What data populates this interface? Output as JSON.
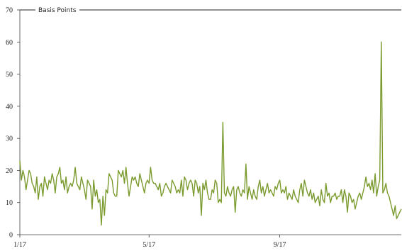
{
  "chart_data": {
    "type": "line",
    "title": "",
    "xlabel": "",
    "ylabel": "",
    "ylim": [
      0,
      70
    ],
    "y_ticks": [
      0,
      10,
      20,
      30,
      40,
      50,
      60,
      70
    ],
    "x_tick_labels": [
      "1/17",
      "5/17",
      "9/17"
    ],
    "grid": false,
    "legend_position": "top",
    "series": [
      {
        "name": "Basis Points",
        "color": "#7a9a2e",
        "values": [
          23,
          17,
          20,
          18,
          14,
          17,
          20,
          19,
          16,
          15,
          13,
          18,
          11,
          15,
          16,
          12,
          18,
          16,
          14,
          17,
          16,
          19,
          17,
          13,
          18,
          19,
          21,
          16,
          17,
          14,
          18,
          13,
          15,
          16,
          15,
          17,
          21,
          16,
          15,
          14,
          18,
          16,
          14,
          11,
          17,
          16,
          15,
          8,
          17,
          12,
          14,
          10,
          11,
          3,
          12,
          6,
          14,
          13,
          19,
          18,
          17,
          13,
          12,
          12,
          20,
          19,
          18,
          20,
          16,
          21,
          16,
          12,
          15,
          18,
          17,
          18,
          16,
          15,
          19,
          17,
          15,
          13,
          16,
          17,
          16,
          21,
          17,
          16,
          16,
          15,
          14,
          16,
          12,
          13,
          15,
          16,
          15,
          14,
          13,
          17,
          16,
          15,
          13,
          14,
          13,
          17,
          12,
          18,
          17,
          14,
          16,
          17,
          16,
          12,
          17,
          16,
          13,
          15,
          6,
          16,
          14,
          17,
          13,
          11,
          11,
          14,
          13,
          17,
          16,
          10,
          11,
          10,
          35,
          13,
          12,
          15,
          13,
          12,
          14,
          15,
          7,
          14,
          15,
          13,
          12,
          14,
          13,
          22,
          11,
          15,
          13,
          11,
          14,
          12,
          11,
          15,
          17,
          13,
          15,
          12,
          14,
          16,
          13,
          14,
          13,
          12,
          15,
          14,
          16,
          17,
          13,
          14,
          13,
          15,
          11,
          13,
          12,
          11,
          14,
          12,
          11,
          10,
          14,
          16,
          12,
          17,
          15,
          13,
          12,
          14,
          11,
          13,
          10,
          11,
          12,
          9,
          14,
          11,
          10,
          16,
          12,
          13,
          10,
          12,
          12,
          13,
          11,
          12,
          12,
          14,
          10,
          14,
          12,
          7,
          13,
          12,
          10,
          11,
          8,
          10,
          12,
          13,
          11,
          13,
          15,
          18,
          15,
          16,
          14,
          17,
          13,
          19,
          12,
          15,
          17,
          60,
          13,
          14,
          16,
          13,
          12,
          10,
          8,
          6,
          9,
          5,
          6,
          7,
          8
        ],
        "x_start": "1/17",
        "x_end": "12/17"
      }
    ]
  }
}
